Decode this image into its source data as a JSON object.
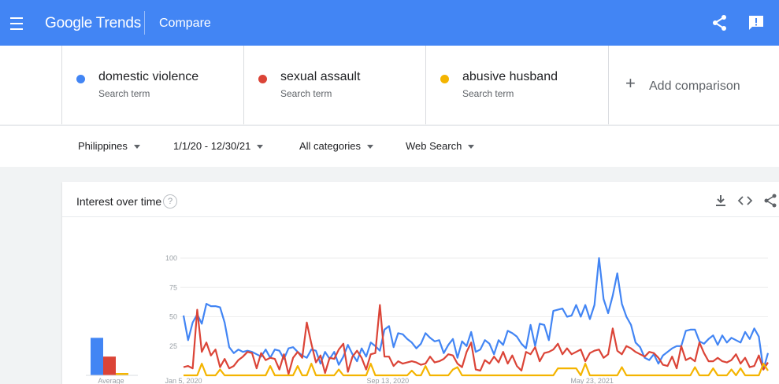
{
  "header": {
    "logo_text": "Google Trends",
    "page_title": "Compare"
  },
  "terms": [
    {
      "name": "domestic violence",
      "sub": "Search term",
      "color": "#4285f4"
    },
    {
      "name": "sexual assault",
      "sub": "Search term",
      "color": "#db4437"
    },
    {
      "name": "abusive husband",
      "sub": "Search term",
      "color": "#f4b400"
    }
  ],
  "add_comparison": {
    "icon": "+",
    "label": "Add comparison"
  },
  "filters": {
    "region": "Philippines",
    "date_range": "1/1/20 - 12/30/21",
    "category": "All categories",
    "search_type": "Web Search"
  },
  "card": {
    "title": "Interest over time",
    "help": "?"
  },
  "chart_data": {
    "type": "line",
    "title": "Interest over time",
    "ylim": [
      0,
      100
    ],
    "y_ticks": [
      25,
      50,
      75,
      100
    ],
    "grid": true,
    "x_tick_labels": [
      "Jan 5, 2020",
      "Sep 13, 2020",
      "May 23, 2021"
    ],
    "x_range": [
      "2020-01-05",
      "2021-12-26"
    ],
    "average_label": "Average",
    "averages": [
      32,
      16,
      2
    ],
    "series": [
      {
        "name": "domestic violence",
        "color": "#4285f4",
        "values": [
          51,
          30,
          45,
          52,
          44,
          61,
          59,
          59,
          58,
          45,
          24,
          19,
          22,
          20,
          21,
          20,
          18,
          16,
          22,
          15,
          22,
          21,
          14,
          23,
          24,
          20,
          17,
          15,
          22,
          21,
          10,
          20,
          14,
          20,
          9,
          16,
          26,
          18,
          12,
          23,
          16,
          28,
          25,
          21,
          39,
          42,
          24,
          36,
          35,
          31,
          28,
          23,
          27,
          36,
          32,
          29,
          30,
          19,
          26,
          31,
          15,
          29,
          25,
          37,
          20,
          22,
          30,
          27,
          18,
          30,
          26,
          38,
          36,
          33,
          27,
          23,
          43,
          25,
          44,
          43,
          30,
          55,
          56,
          57,
          50,
          51,
          60,
          50,
          60,
          48,
          60,
          100,
          65,
          53,
          68,
          87,
          61,
          50,
          43,
          28,
          24,
          15,
          13,
          18,
          10,
          17,
          20,
          23,
          25,
          25,
          38,
          39,
          39,
          29,
          27,
          31,
          34,
          26,
          34,
          28,
          32,
          30,
          28,
          37,
          31,
          40,
          33,
          5,
          19
        ]
      },
      {
        "name": "sexual assault",
        "color": "#db4437",
        "values": [
          7,
          8,
          6,
          56,
          20,
          28,
          17,
          22,
          7,
          14,
          6,
          8,
          13,
          16,
          20,
          19,
          6,
          19,
          13,
          15,
          14,
          5,
          18,
          1,
          15,
          20,
          15,
          45,
          27,
          11,
          17,
          2,
          15,
          14,
          22,
          27,
          3,
          16,
          21,
          15,
          5,
          18,
          19,
          60,
          16,
          16,
          8,
          12,
          10,
          11,
          12,
          11,
          9,
          10,
          16,
          11,
          12,
          14,
          18,
          17,
          10,
          7,
          20,
          28,
          5,
          4,
          13,
          10,
          16,
          11,
          20,
          10,
          17,
          8,
          4,
          20,
          18,
          24,
          12,
          19,
          20,
          22,
          27,
          18,
          23,
          18,
          20,
          22,
          12,
          19,
          21,
          22,
          15,
          18,
          40,
          21,
          18,
          25,
          23,
          20,
          18,
          16,
          20,
          19,
          15,
          9,
          8,
          16,
          6,
          25,
          13,
          15,
          12,
          28,
          19,
          12,
          12,
          15,
          12,
          11,
          13,
          18,
          10,
          15,
          7,
          8,
          17,
          5,
          11
        ]
      },
      {
        "name": "abusive husband",
        "color": "#f4b400",
        "values": [
          0,
          0,
          0,
          0,
          10,
          0,
          0,
          0,
          5,
          0,
          0,
          0,
          0,
          0,
          0,
          0,
          0,
          0,
          0,
          8,
          0,
          0,
          0,
          0,
          0,
          8,
          0,
          0,
          10,
          0,
          0,
          0,
          0,
          0,
          5,
          0,
          0,
          0,
          0,
          0,
          0,
          10,
          0,
          0,
          0,
          0,
          0,
          0,
          0,
          0,
          4,
          0,
          0,
          8,
          0,
          0,
          0,
          0,
          0,
          5,
          7,
          0,
          0,
          0,
          0,
          0,
          0,
          0,
          0,
          0,
          0,
          0,
          0,
          0,
          0,
          0,
          0,
          0,
          0,
          0,
          0,
          0,
          6,
          6,
          6,
          6,
          6,
          0,
          10,
          0,
          0,
          0,
          0,
          0,
          0,
          0,
          7,
          0,
          0,
          0,
          0,
          0,
          0,
          0,
          0,
          0,
          0,
          0,
          0,
          0,
          0,
          0,
          7,
          0,
          0,
          0,
          6,
          0,
          0,
          0,
          5,
          0,
          6,
          0,
          0,
          0,
          0,
          10,
          4
        ]
      }
    ]
  },
  "icons": [
    "menu-icon",
    "share-icon",
    "feedback-icon",
    "help-icon",
    "download-icon",
    "embed-icon",
    "share-chart-icon"
  ]
}
